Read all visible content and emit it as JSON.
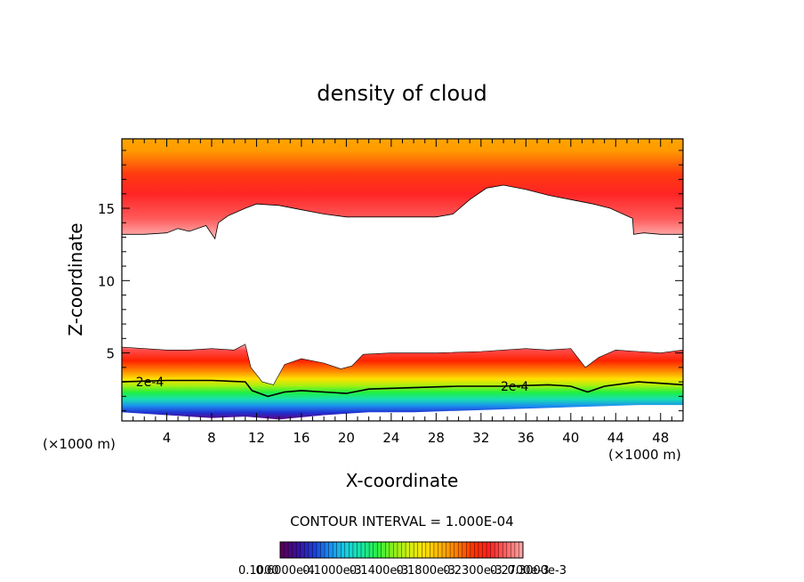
{
  "chart_data": {
    "type": "heatmap",
    "title": "density of cloud",
    "xlabel": "X-coordinate",
    "ylabel": "Z-coordinate",
    "x_unit_left": "(×1000 m)",
    "x_unit_right": "(×1000 m)",
    "xlim": [
      0,
      50
    ],
    "ylim": [
      0.3,
      19.8
    ],
    "x_ticks": [
      4,
      8,
      12,
      16,
      20,
      24,
      28,
      32,
      36,
      40,
      44,
      48
    ],
    "y_ticks": [
      5,
      10,
      15
    ],
    "contour_interval_text": "CONTOUR INTERVAL = 1.000E-04",
    "contour_labels": [
      {
        "text": "2e-4",
        "x": 2.5,
        "z": 3.0
      },
      {
        "text": "2e-4",
        "x": 35,
        "z": 2.7
      }
    ],
    "colorbar_labels": [
      "0.1000",
      "0.6000e-4",
      "0.1000e-3",
      "0.1400e-3",
      "0.1800e-3",
      "0.2300e-3",
      "0.2700e-3",
      "0.3000e-3"
    ],
    "upper_layer_bottom": [
      [
        0,
        13.2
      ],
      [
        2,
        13.2
      ],
      [
        4,
        13.3
      ],
      [
        5,
        13.6
      ],
      [
        6,
        13.4
      ],
      [
        7.5,
        13.8
      ],
      [
        8.3,
        12.9
      ],
      [
        8.6,
        14.0
      ],
      [
        9.5,
        14.5
      ],
      [
        11,
        15.0
      ],
      [
        12,
        15.3
      ],
      [
        14,
        15.2
      ],
      [
        16,
        14.9
      ],
      [
        18,
        14.6
      ],
      [
        20,
        14.4
      ],
      [
        24,
        14.4
      ],
      [
        28,
        14.4
      ],
      [
        29.5,
        14.6
      ],
      [
        31,
        15.6
      ],
      [
        32.5,
        16.4
      ],
      [
        34,
        16.6
      ],
      [
        36,
        16.3
      ],
      [
        38,
        15.9
      ],
      [
        40,
        15.6
      ],
      [
        42,
        15.3
      ],
      [
        43.5,
        15.0
      ],
      [
        45.5,
        14.3
      ],
      [
        45.6,
        13.2
      ],
      [
        46.5,
        13.3
      ],
      [
        48,
        13.2
      ],
      [
        50,
        13.2
      ]
    ],
    "lower_layer_top": [
      [
        0,
        5.4
      ],
      [
        2,
        5.3
      ],
      [
        4,
        5.2
      ],
      [
        6,
        5.2
      ],
      [
        8,
        5.3
      ],
      [
        10,
        5.2
      ],
      [
        11,
        5.6
      ],
      [
        11.5,
        4.0
      ],
      [
        12.5,
        3.0
      ],
      [
        13.5,
        2.8
      ],
      [
        14.5,
        4.2
      ],
      [
        16,
        4.6
      ],
      [
        18,
        4.3
      ],
      [
        19.5,
        3.9
      ],
      [
        20.5,
        4.1
      ],
      [
        21.5,
        4.9
      ],
      [
        24,
        5.0
      ],
      [
        28,
        5.0
      ],
      [
        32,
        5.1
      ],
      [
        36,
        5.3
      ],
      [
        38,
        5.2
      ],
      [
        40,
        5.3
      ],
      [
        41.3,
        4.0
      ],
      [
        42.5,
        4.7
      ],
      [
        44,
        5.2
      ],
      [
        46,
        5.1
      ],
      [
        48,
        5.0
      ],
      [
        50,
        5.2
      ]
    ],
    "contour_2e4": [
      [
        0,
        3.0
      ],
      [
        4,
        3.1
      ],
      [
        8,
        3.1
      ],
      [
        11,
        3.0
      ],
      [
        11.6,
        2.4
      ],
      [
        13,
        2.0
      ],
      [
        14.5,
        2.3
      ],
      [
        16,
        2.4
      ],
      [
        18,
        2.3
      ],
      [
        20,
        2.2
      ],
      [
        22,
        2.5
      ],
      [
        26,
        2.6
      ],
      [
        30,
        2.7
      ],
      [
        34,
        2.7
      ],
      [
        38,
        2.8
      ],
      [
        40,
        2.7
      ],
      [
        41.5,
        2.3
      ],
      [
        43,
        2.7
      ],
      [
        46,
        3.0
      ],
      [
        48,
        2.9
      ],
      [
        50,
        2.8
      ]
    ],
    "lower_layer_bottom": [
      [
        0,
        0.9
      ],
      [
        4,
        0.7
      ],
      [
        8,
        0.5
      ],
      [
        11,
        0.6
      ],
      [
        14,
        0.4
      ],
      [
        18,
        0.7
      ],
      [
        22,
        0.9
      ],
      [
        26,
        0.9
      ],
      [
        30,
        1.0
      ],
      [
        34,
        1.1
      ],
      [
        38,
        1.2
      ],
      [
        42,
        1.3
      ],
      [
        46,
        1.4
      ],
      [
        50,
        1.4
      ]
    ],
    "colormap": [
      "#5a005a",
      "#3a10a0",
      "#1c3fd8",
      "#1a8ff0",
      "#19d0e0",
      "#18e6a0",
      "#2cf040",
      "#8ef018",
      "#d4f010",
      "#ffe000",
      "#ffb000",
      "#ff7a00",
      "#ff3200",
      "#ff2020",
      "#ff6060",
      "#ffa0a0"
    ]
  }
}
